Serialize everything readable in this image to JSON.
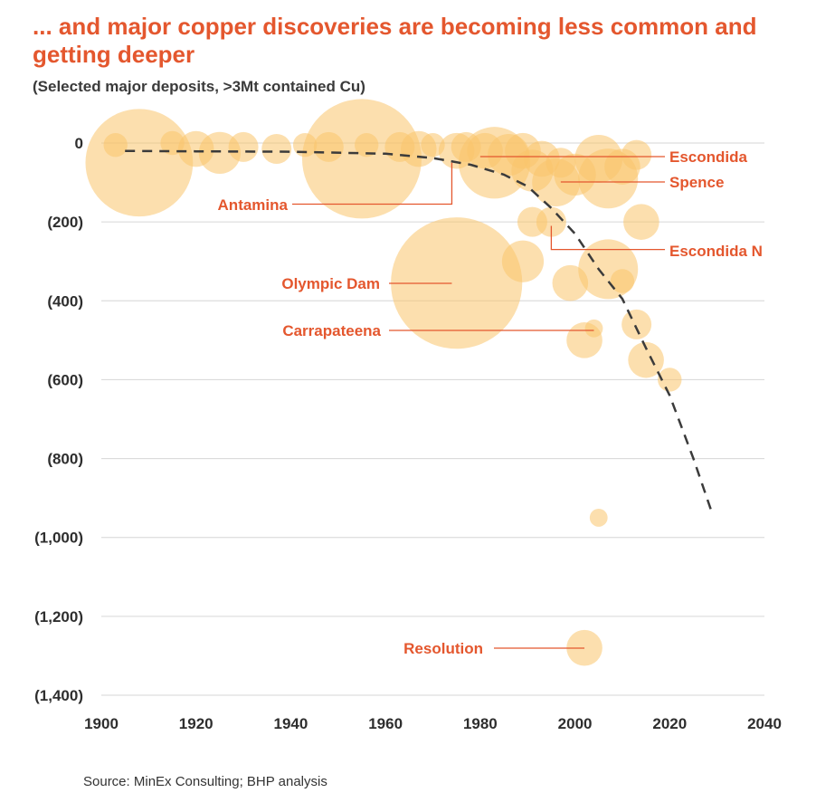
{
  "title": "... and major copper discoveries are becoming less common and getting deeper",
  "subtitle": "(Selected major deposits, >3Mt contained Cu)",
  "source": "Source: MinEx Consulting; BHP analysis",
  "chart_data": {
    "type": "scatter",
    "bubble": true,
    "xlim": [
      1900,
      2040
    ],
    "ylim": [
      0,
      1400
    ],
    "y_inverted": true,
    "grid": true,
    "x_ticks": [
      1900,
      1920,
      1940,
      1960,
      1980,
      2000,
      2020,
      2040
    ],
    "x_tick_labels": [
      "1900",
      "1920",
      "1940",
      "1960",
      "1980",
      "2000",
      "2020",
      "2040"
    ],
    "y_ticks": [
      0,
      200,
      400,
      600,
      800,
      1000,
      1200,
      1400
    ],
    "y_tick_labels": [
      "0",
      "(200)",
      "(400)",
      "(600)",
      "(800)",
      "(1,000)",
      "(1,200)",
      "(1,400)"
    ],
    "bubble_color": "#F9C46B",
    "accent_color": "#E4572E",
    "bubbles": [
      {
        "x": 1908,
        "y": 50,
        "size": 9
      },
      {
        "x": 1903,
        "y": 5,
        "size": 2
      },
      {
        "x": 1915,
        "y": 0,
        "size": 2
      },
      {
        "x": 1920,
        "y": 15,
        "size": 3
      },
      {
        "x": 1925,
        "y": 25,
        "size": 3.5
      },
      {
        "x": 1930,
        "y": 10,
        "size": 2.5
      },
      {
        "x": 1937,
        "y": 15,
        "size": 2.5
      },
      {
        "x": 1943,
        "y": 5,
        "size": 2
      },
      {
        "x": 1948,
        "y": 10,
        "size": 2.5
      },
      {
        "x": 1955,
        "y": 40,
        "size": 10
      },
      {
        "x": 1956,
        "y": 5,
        "size": 2
      },
      {
        "x": 1963,
        "y": 10,
        "size": 2.5
      },
      {
        "x": 1967,
        "y": 15,
        "size": 3
      },
      {
        "x": 1970,
        "y": 5,
        "size": 2
      },
      {
        "x": 1975,
        "y": 20,
        "size": 3
      },
      {
        "x": 1977,
        "y": 10,
        "size": 2.5
      },
      {
        "x": 1981,
        "y": 20,
        "size": 3
      },
      {
        "x": 1983,
        "y": 50,
        "size": 6
      },
      {
        "x": 1986,
        "y": 30,
        "size": 3.5
      },
      {
        "x": 1989,
        "y": 20,
        "size": 3
      },
      {
        "x": 1991,
        "y": 70,
        "size": 3.5
      },
      {
        "x": 1993,
        "y": 40,
        "size": 3
      },
      {
        "x": 1996,
        "y": 100,
        "size": 4
      },
      {
        "x": 1997,
        "y": 50,
        "size": 2.5
      },
      {
        "x": 2000,
        "y": 80,
        "size": 3.5
      },
      {
        "x": 2005,
        "y": 40,
        "size": 4
      },
      {
        "x": 2007,
        "y": 90,
        "size": 5
      },
      {
        "x": 2010,
        "y": 60,
        "size": 3
      },
      {
        "x": 2013,
        "y": 30,
        "size": 2.5
      },
      {
        "x": 1991,
        "y": 200,
        "size": 2.5
      },
      {
        "x": 1995,
        "y": 200,
        "size": 2.5
      },
      {
        "x": 2014,
        "y": 200,
        "size": 3
      },
      {
        "x": 1975,
        "y": 355,
        "size": 11
      },
      {
        "x": 1989,
        "y": 300,
        "size": 3.5
      },
      {
        "x": 1999,
        "y": 355,
        "size": 3
      },
      {
        "x": 2007,
        "y": 320,
        "size": 5
      },
      {
        "x": 2010,
        "y": 350,
        "size": 2
      },
      {
        "x": 2002,
        "y": 500,
        "size": 3
      },
      {
        "x": 2004,
        "y": 470,
        "size": 1.5
      },
      {
        "x": 2013,
        "y": 460,
        "size": 2.5
      },
      {
        "x": 2015,
        "y": 550,
        "size": 3
      },
      {
        "x": 2020,
        "y": 600,
        "size": 2
      },
      {
        "x": 2005,
        "y": 950,
        "size": 1.5
      },
      {
        "x": 2002,
        "y": 1280,
        "size": 3
      }
    ],
    "trend": [
      {
        "x": 1905,
        "y": 20
      },
      {
        "x": 1920,
        "y": 21
      },
      {
        "x": 1940,
        "y": 22
      },
      {
        "x": 1960,
        "y": 27
      },
      {
        "x": 1970,
        "y": 38
      },
      {
        "x": 1978,
        "y": 55
      },
      {
        "x": 1985,
        "y": 80
      },
      {
        "x": 1990,
        "y": 110
      },
      {
        "x": 1995,
        "y": 165
      },
      {
        "x": 2000,
        "y": 230
      },
      {
        "x": 2005,
        "y": 320
      },
      {
        "x": 2010,
        "y": 395
      },
      {
        "x": 2015,
        "y": 520
      },
      {
        "x": 2020,
        "y": 640
      },
      {
        "x": 2025,
        "y": 800
      },
      {
        "x": 2029,
        "y": 940
      }
    ],
    "annotations": [
      {
        "label": "Escondida",
        "point": {
          "x": 1980,
          "y": 30
        },
        "style": "straight"
      },
      {
        "label": "Spence",
        "point": {
          "x": 1997,
          "y": 95
        },
        "style": "straight"
      },
      {
        "label": "Antamina",
        "point": {
          "x": 1974,
          "y": 50
        },
        "style": "elbow",
        "elbow_y": 155
      },
      {
        "label": "Escondida N",
        "point": {
          "x": 1995,
          "y": 210
        },
        "style": "elbow",
        "elbow_y": 270
      },
      {
        "label": "Olympic Dam",
        "point": {
          "x": 1974,
          "y": 355
        },
        "style": "straight"
      },
      {
        "label": "Carrapateena",
        "point": {
          "x": 2004,
          "y": 470
        },
        "style": "straight"
      },
      {
        "label": "Resolution",
        "point": {
          "x": 2002,
          "y": 1280
        },
        "style": "straight"
      }
    ]
  }
}
